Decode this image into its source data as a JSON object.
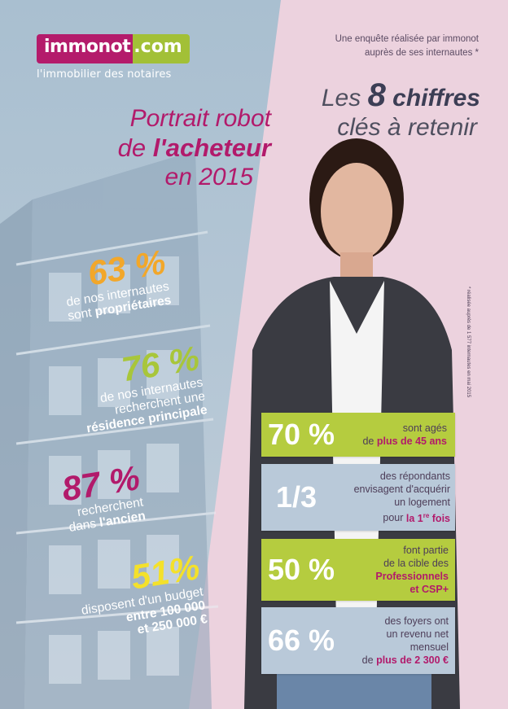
{
  "logo": {
    "brand": "immonot",
    "suffix": ".com",
    "tagline": "l'immobilier des notaires",
    "colors": {
      "brand": "#b41b6b",
      "suffix": "#a2c037"
    }
  },
  "survey_note": [
    "Une enquête réalisée par immonot",
    "auprès de ses internautes *"
  ],
  "key_title": {
    "prefix": "Les ",
    "number": "8",
    "word": " chiffres",
    "line2": "clés à retenir"
  },
  "portrait_title": {
    "line1": "Portrait robot",
    "line2_prefix": "de ",
    "line2_bold": "l'acheteur",
    "line3": "en 2015"
  },
  "left_stats": [
    {
      "number": "63 %",
      "line1": "de nos internautes",
      "line2_prefix": "sont ",
      "line2_bold": "propriétaires",
      "color": "#f2a72a"
    },
    {
      "number": "76 %",
      "line1": "de nos internautes",
      "line2": "recherchent une",
      "line3_bold": "résidence principale",
      "color": "#a8c63a"
    },
    {
      "number": "87 %",
      "line1": "recherchent",
      "line2_prefix": "dans ",
      "line2_bold": "l'ancien",
      "color": "#b21a6b"
    },
    {
      "number": "51%",
      "line1": "disposent d'un budget",
      "line2_bold": "entre 100 000",
      "line3_bold": "et 250 000 €",
      "color": "#f4e12b"
    }
  ],
  "right_boxes": [
    {
      "number": "70 %",
      "text1": "sont agés",
      "text2_prefix": "de ",
      "text2_bold": "plus de 45 ans",
      "style": "green"
    },
    {
      "number": "1/3",
      "text1": "des répondants",
      "text2": "envisagent d'acquérir",
      "text3": "un logement",
      "text4_prefix": "pour ",
      "text4_bold": "la 1",
      "text4_sup": "re",
      "text4_bold2": " fois",
      "style": "blue"
    },
    {
      "number": "50 %",
      "text1": "font partie",
      "text2": "de la cible des",
      "text3_bold": "Professionnels",
      "text4_bold": "et CSP+",
      "style": "green"
    },
    {
      "number": "66 %",
      "text1": "des foyers ont",
      "text2": "un revenu net",
      "text3": "mensuel",
      "text4_prefix": "de ",
      "text4_bold": "plus de 2 300 €",
      "style": "blue"
    }
  ],
  "footnote": "* réalisée auprès de 1 577 internautes en mai 2015"
}
